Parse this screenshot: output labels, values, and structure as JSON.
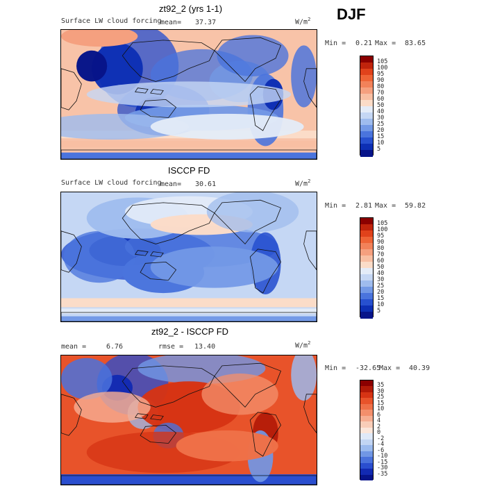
{
  "season": "DJF",
  "panels": [
    {
      "title": "zt92_2 (yrs 1-1)",
      "left_label": "Surface LW cloud forcing",
      "stat_label": "mean=",
      "stat_value": "37.37",
      "units": "W/m",
      "units_sup": "2",
      "min_label": "Min =",
      "min_value": "0.21",
      "max_label": "Max =",
      "max_value": "83.65",
      "colorbar_levels": [
        "105",
        "100",
        "95",
        "90",
        "80",
        "70",
        "60",
        "50",
        "40",
        "30",
        "25",
        "20",
        "15",
        "10",
        "5"
      ],
      "colorbar_colors": [
        "#8b0000",
        "#c0240c",
        "#e0421b",
        "#ee6436",
        "#f2825a",
        "#f5a07f",
        "#f8bfa3",
        "#fbdcc8",
        "#e4ecf8",
        "#c5d7f4",
        "#9fbcee",
        "#7399e6",
        "#4a74dd",
        "#2750cf",
        "#0d2fb4",
        "#07148a"
      ],
      "map_description": "surface LW cloud forcing model"
    },
    {
      "title": "ISCCP FD",
      "left_label": "Surface LW cloud forcing",
      "stat_label": "mean=",
      "stat_value": "30.61",
      "units": "W/m",
      "units_sup": "2",
      "min_label": "Min =",
      "min_value": "2.81",
      "max_label": "Max =",
      "max_value": "59.82",
      "colorbar_levels": [
        "105",
        "100",
        "95",
        "90",
        "80",
        "70",
        "60",
        "50",
        "40",
        "30",
        "25",
        "20",
        "15",
        "10",
        "5"
      ],
      "colorbar_colors": [
        "#8b0000",
        "#c0240c",
        "#e0421b",
        "#ee6436",
        "#f2825a",
        "#f5a07f",
        "#f8bfa3",
        "#fbdcc8",
        "#e4ecf8",
        "#c5d7f4",
        "#9fbcee",
        "#7399e6",
        "#4a74dd",
        "#2750cf",
        "#0d2fb4",
        "#07148a"
      ],
      "map_description": "surface LW cloud forcing observed"
    },
    {
      "title": "zt92_2 - ISCCP FD",
      "left_label": "mean =",
      "stat_label": "",
      "stat_value": "6.76",
      "rmse_label": "rmse =",
      "rmse_value": "13.40",
      "units": "W/m",
      "units_sup": "2",
      "min_label": "Min =",
      "min_value": "-32.65",
      "max_label": "Max =",
      "max_value": "40.39",
      "colorbar_levels": [
        "35",
        "30",
        "25",
        "15",
        "10",
        "6",
        "4",
        "2",
        "0",
        "-2",
        "-4",
        "-6",
        "-10",
        "-15",
        "-30",
        "-35"
      ],
      "colorbar_colors": [
        "#8b0000",
        "#b21a08",
        "#d63414",
        "#e8532a",
        "#ef7048",
        "#f38f6c",
        "#f6ae92",
        "#f9cdb8",
        "#fbe6da",
        "#dfe9f8",
        "#c2d5f3",
        "#9bbaee",
        "#7197e5",
        "#4a72dc",
        "#2a4ecf",
        "#122ab2",
        "#07148a"
      ],
      "map_description": "difference"
    }
  ],
  "chart_data": [
    {
      "type": "heatmap",
      "title": "zt92_2 (yrs 1-1)",
      "variable": "Surface LW cloud forcing",
      "units": "W/m2",
      "mean": 37.37,
      "min": 0.21,
      "max": 83.65,
      "levels": [
        5,
        10,
        15,
        20,
        25,
        30,
        40,
        50,
        60,
        70,
        80,
        90,
        95,
        100,
        105
      ]
    },
    {
      "type": "heatmap",
      "title": "ISCCP FD",
      "variable": "Surface LW cloud forcing",
      "units": "W/m2",
      "mean": 30.61,
      "min": 2.81,
      "max": 59.82,
      "levels": [
        5,
        10,
        15,
        20,
        25,
        30,
        40,
        50,
        60,
        70,
        80,
        90,
        95,
        100,
        105
      ]
    },
    {
      "type": "heatmap",
      "title": "zt92_2 - ISCCP FD",
      "units": "W/m2",
      "mean": 6.76,
      "rmse": 13.4,
      "min": -32.65,
      "max": 40.39,
      "levels": [
        -35,
        -30,
        -15,
        -10,
        -6,
        -4,
        -2,
        0,
        2,
        4,
        6,
        10,
        15,
        25,
        30,
        35
      ]
    }
  ]
}
